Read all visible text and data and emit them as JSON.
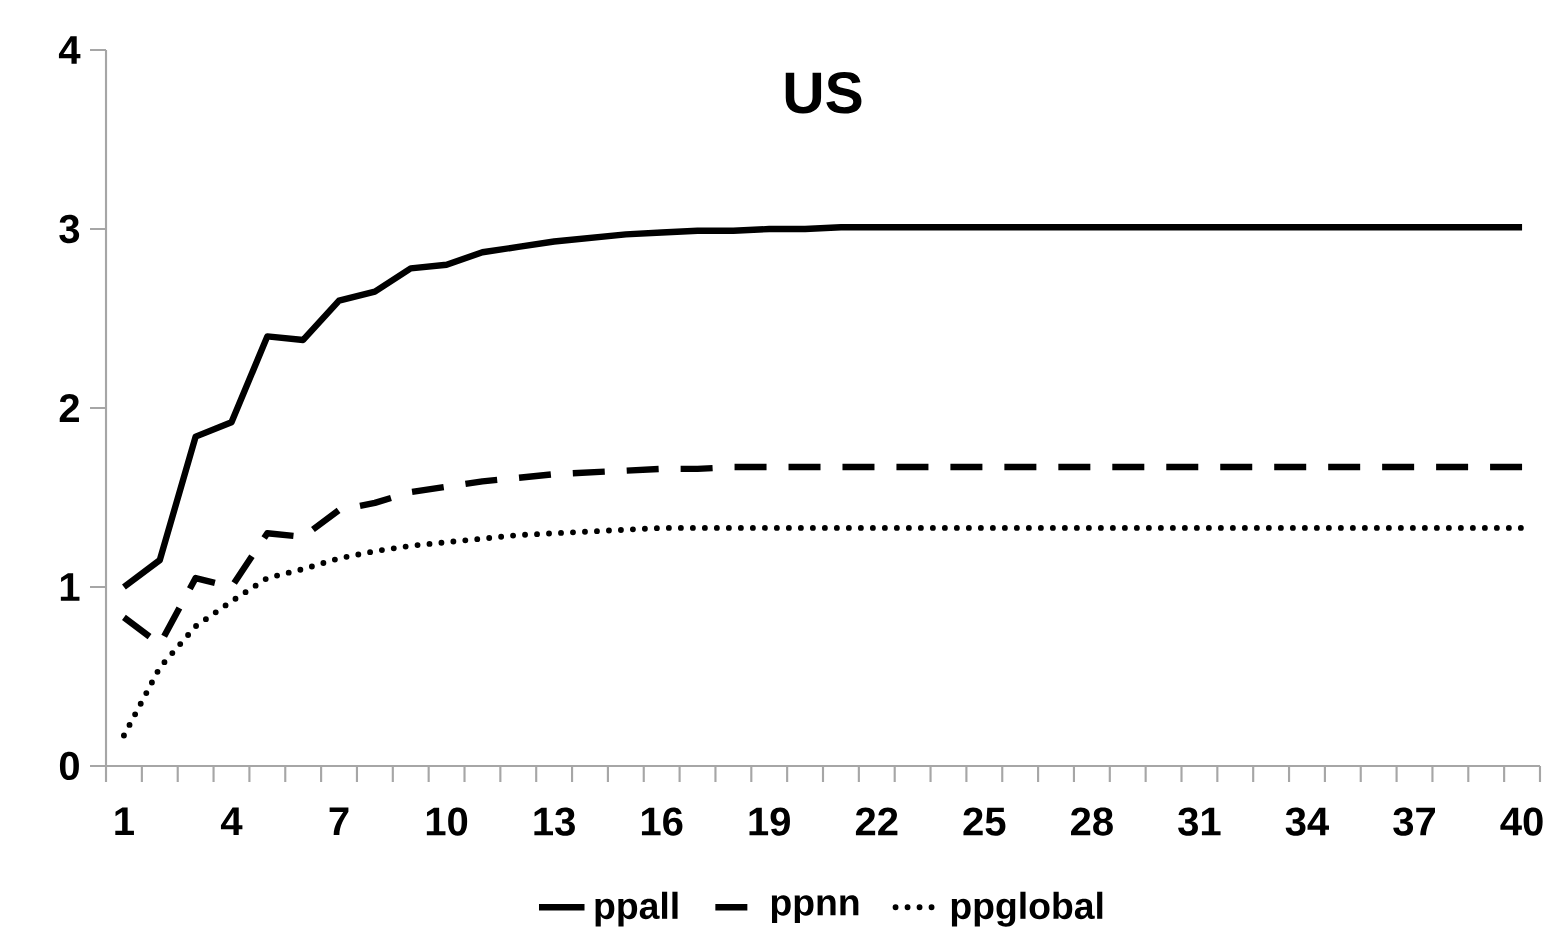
{
  "chart_data": {
    "type": "line",
    "title": "US",
    "categories": [
      "1",
      null,
      null,
      "4",
      null,
      null,
      "7",
      null,
      null,
      "10",
      null,
      null,
      "13",
      null,
      null,
      "16",
      null,
      null,
      "19",
      null,
      null,
      "22",
      null,
      null,
      "25",
      null,
      null,
      "28",
      null,
      null,
      "31",
      null,
      null,
      "34",
      null,
      null,
      "37",
      null,
      null,
      "40"
    ],
    "series": [
      {
        "name": "ppall",
        "color": "#000000",
        "line_style": "solid",
        "values": [
          1.0,
          1.15,
          1.84,
          1.92,
          2.4,
          2.38,
          2.6,
          2.65,
          2.78,
          2.8,
          2.87,
          2.9,
          2.93,
          2.95,
          2.97,
          2.98,
          2.99,
          2.99,
          3.0,
          3.0,
          3.01,
          3.01,
          3.01,
          3.01,
          3.01,
          3.01,
          3.01,
          3.01,
          3.01,
          3.01,
          3.01,
          3.01,
          3.01,
          3.01,
          3.01,
          3.01,
          3.01,
          3.01,
          3.01,
          3.01
        ]
      },
      {
        "name": "ppnn",
        "color": "#000000",
        "line_style": "dashed",
        "values": [
          0.83,
          0.68,
          1.05,
          1.0,
          1.3,
          1.28,
          1.43,
          1.47,
          1.53,
          1.56,
          1.59,
          1.61,
          1.63,
          1.64,
          1.65,
          1.66,
          1.66,
          1.67,
          1.67,
          1.67,
          1.67,
          1.67,
          1.67,
          1.67,
          1.67,
          1.67,
          1.67,
          1.67,
          1.67,
          1.67,
          1.67,
          1.67,
          1.67,
          1.67,
          1.67,
          1.67,
          1.67,
          1.67,
          1.67,
          1.67
        ]
      },
      {
        "name": "ppglobal",
        "color": "#000000",
        "line_style": "dotted",
        "values": [
          0.17,
          0.55,
          0.78,
          0.92,
          1.05,
          1.1,
          1.16,
          1.2,
          1.23,
          1.25,
          1.27,
          1.29,
          1.3,
          1.31,
          1.32,
          1.33,
          1.33,
          1.33,
          1.33,
          1.33,
          1.33,
          1.33,
          1.33,
          1.33,
          1.33,
          1.33,
          1.33,
          1.33,
          1.33,
          1.33,
          1.33,
          1.33,
          1.33,
          1.33,
          1.33,
          1.33,
          1.33,
          1.33,
          1.33,
          1.33
        ]
      }
    ],
    "ylim": [
      0,
      4
    ],
    "yticks": [
      0,
      1,
      2,
      3,
      4
    ],
    "legend": "bottom",
    "marker": "none",
    "grid": false
  }
}
